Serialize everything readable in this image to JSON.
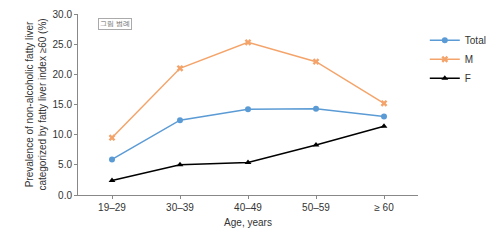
{
  "chart_data": {
    "type": "line",
    "x_label": "Age, years",
    "y_label": [
      "Prevalence of non-alcoholic fatty liver",
      "categorized by fatty liver index ≥60 (%)"
    ],
    "annotations": [
      "그림 범례"
    ],
    "categories": [
      "19–29",
      "30–39",
      "40–49",
      "50–59",
      "≥ 60"
    ],
    "series": [
      {
        "name": "Total",
        "color": "#5b9bd5",
        "marker": "circle",
        "line_style": "solid",
        "values": [
          5.9,
          12.4,
          14.2,
          14.3,
          13.0
        ]
      },
      {
        "name": "M",
        "color": "#f4a46a",
        "marker": "x",
        "line_style": "solid",
        "values": [
          9.5,
          21.0,
          25.3,
          22.1,
          15.2
        ]
      },
      {
        "name": "F",
        "color": "#000000",
        "marker": "triangle-up",
        "line_style": "solid",
        "values": [
          2.4,
          5.0,
          5.4,
          8.3,
          11.4
        ]
      }
    ],
    "ylim": [
      0,
      30
    ],
    "yticks": [
      {
        "value": 0,
        "label": "0.0"
      },
      {
        "value": 5,
        "label": "5.0"
      },
      {
        "value": 10,
        "label": "10.0"
      },
      {
        "value": 15,
        "label": "15.0"
      },
      {
        "value": 20,
        "label": "20.0"
      },
      {
        "value": 25,
        "label": "25.0"
      },
      {
        "value": 30,
        "label": "30.0"
      }
    ],
    "grid": false,
    "legend": "right"
  }
}
